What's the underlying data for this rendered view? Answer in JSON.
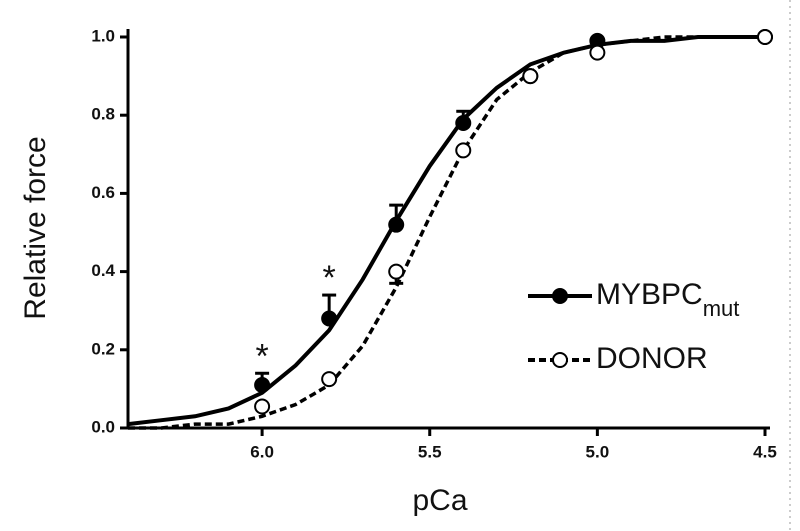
{
  "chart_data": {
    "type": "scatter",
    "xlabel": "pCa",
    "ylabel": "Relative force",
    "xlim": [
      6.4,
      4.5
    ],
    "xticks": [
      {
        "value": 6.0,
        "label": "6.0"
      },
      5.5,
      {
        "value": 5.0,
        "label": "5.0"
      },
      4.5
    ],
    "ylim": [
      0,
      1.0
    ],
    "yticks": [
      {
        "value": 0,
        "label": "0.0"
      },
      0.2,
      0.4,
      0.6,
      0.8,
      {
        "value": 1.0,
        "label": "1.0"
      }
    ],
    "x": [
      6.0,
      5.8,
      5.6,
      5.4,
      5.2,
      5.0,
      4.5
    ],
    "series": [
      {
        "name": "MYBPC",
        "subscript": "mut",
        "color": "#000000",
        "marker": "filled",
        "line": "solid",
        "values": [
          0.11,
          0.28,
          0.52,
          0.78,
          0.9,
          0.99,
          1.0
        ],
        "errors": [
          0.03,
          0.06,
          0.05,
          0.03,
          null,
          null,
          null
        ],
        "error_direction": "up",
        "curve": {
          "x": [
            6.4,
            6.3,
            6.2,
            6.1,
            6.0,
            5.9,
            5.8,
            5.7,
            5.6,
            5.5,
            5.4,
            5.3,
            5.2,
            5.1,
            5.0,
            4.9,
            4.8,
            4.7,
            4.6,
            4.5
          ],
          "values": [
            0.01,
            0.02,
            0.03,
            0.05,
            0.09,
            0.16,
            0.25,
            0.38,
            0.53,
            0.67,
            0.79,
            0.87,
            0.93,
            0.96,
            0.98,
            0.99,
            0.99,
            1.0,
            1.0,
            1.0
          ]
        }
      },
      {
        "name": "DONOR",
        "color": "#000000",
        "marker": "open",
        "line": "dashed",
        "values": [
          0.055,
          0.125,
          0.4,
          0.71,
          0.9,
          0.96,
          1.0
        ],
        "errors": [
          null,
          null,
          0.03,
          null,
          null,
          null,
          null
        ],
        "error_direction": "down",
        "curve": {
          "x": [
            6.4,
            6.3,
            6.2,
            6.1,
            6.0,
            5.9,
            5.8,
            5.7,
            5.6,
            5.5,
            5.4,
            5.3,
            5.2,
            5.1,
            5.0,
            4.9,
            4.8,
            4.7,
            4.6,
            4.5
          ],
          "values": [
            0.0,
            0.0,
            0.01,
            0.01,
            0.03,
            0.06,
            0.11,
            0.21,
            0.36,
            0.54,
            0.71,
            0.84,
            0.91,
            0.96,
            0.98,
            0.99,
            1.0,
            1.0,
            1.0,
            1.0
          ]
        }
      }
    ],
    "annotations": [
      {
        "text": "*",
        "x": 6.0
      },
      {
        "text": "*",
        "x": 5.8
      }
    ]
  }
}
